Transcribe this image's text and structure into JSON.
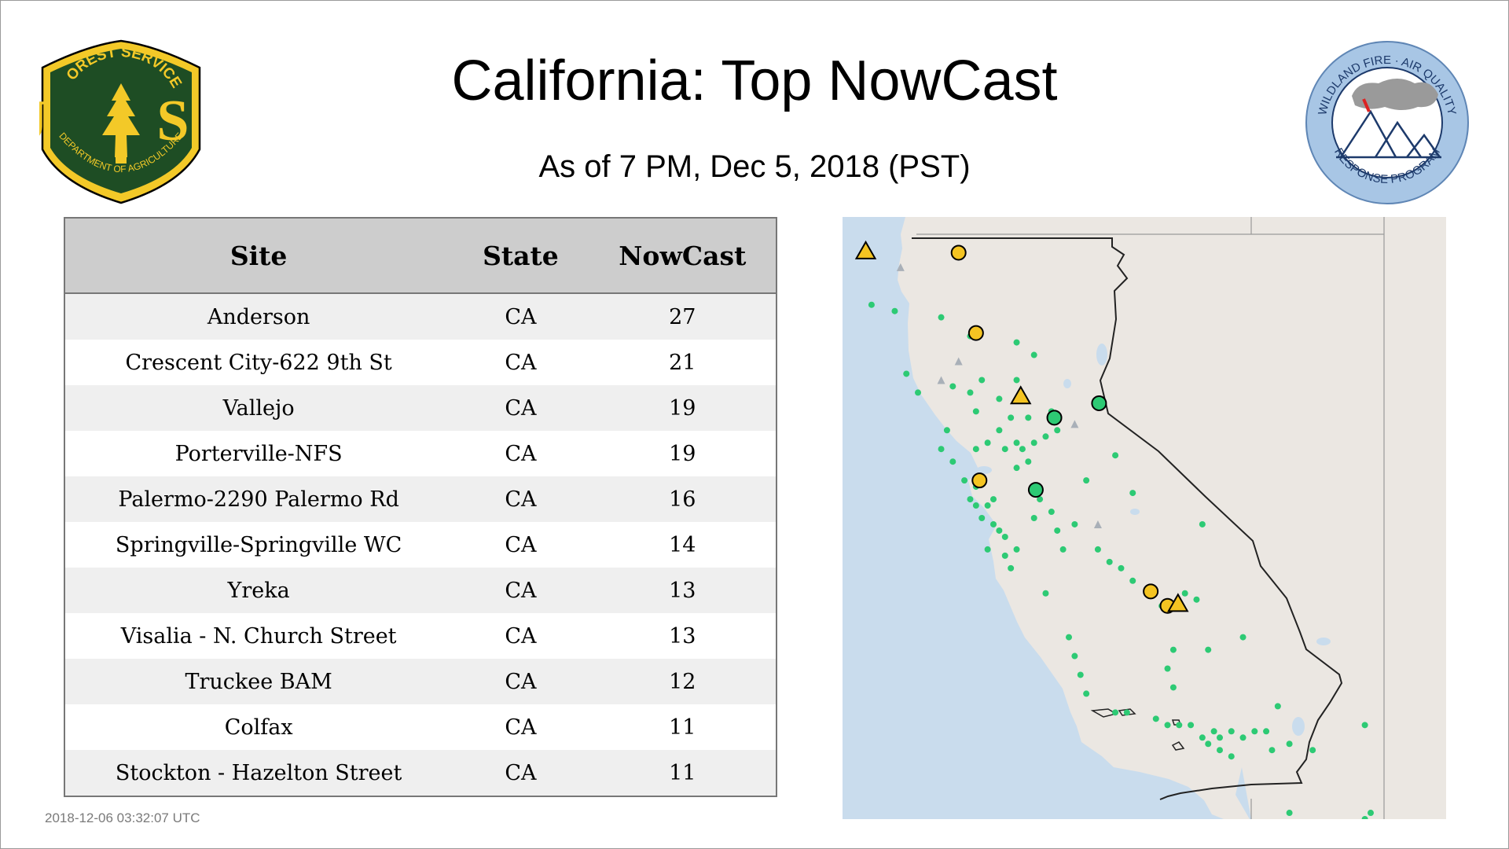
{
  "header": {
    "title": "California: Top NowCast",
    "subtitle": "As of  7 PM, Dec  5, 2018 (PST)"
  },
  "logos": {
    "usfs": {
      "icon": "forest-service-shield-logo",
      "top_text": "FOREST SERVICE",
      "letters": "U S",
      "bottom_text": "DEPARTMENT OF AGRICULTURE",
      "colors": {
        "shield": "#1e4d24",
        "gold": "#f3c928"
      }
    },
    "wfaq": {
      "icon": "wildland-fire-air-quality-logo",
      "top_text": "WILDLAND FIRE · AIR QUALITY",
      "bottom_text": "RESPONSE PROGRAM",
      "colors": {
        "ring": "#a8c6e5",
        "text": "#1d3a6b"
      }
    }
  },
  "table": {
    "columns": [
      "Site",
      "State",
      "NowCast"
    ],
    "rows": [
      {
        "site": "Anderson",
        "state": "CA",
        "nowcast": "27"
      },
      {
        "site": "Crescent City-622 9th St",
        "state": "CA",
        "nowcast": "21"
      },
      {
        "site": "Vallejo",
        "state": "CA",
        "nowcast": "19"
      },
      {
        "site": "Porterville-NFS",
        "state": "CA",
        "nowcast": "19"
      },
      {
        "site": "Palermo-2290 Palermo Rd",
        "state": "CA",
        "nowcast": "16"
      },
      {
        "site": "Springville-Springville WC",
        "state": "CA",
        "nowcast": "14"
      },
      {
        "site": "Yreka",
        "state": "CA",
        "nowcast": "13"
      },
      {
        "site": "Visalia - N. Church Street",
        "state": "CA",
        "nowcast": "13"
      },
      {
        "site": "Truckee BAM",
        "state": "CA",
        "nowcast": "12"
      },
      {
        "site": "Colfax",
        "state": "CA",
        "nowcast": "11"
      },
      {
        "site": "Stockton - Hazelton Street",
        "state": "CA",
        "nowcast": "11"
      }
    ]
  },
  "map": {
    "region": "California",
    "colors": {
      "ocean": "#c9dced",
      "land": "#ebe7e2",
      "border": "#222222",
      "good": "#2dca74",
      "moderate": "#f4c422",
      "marker_outline": "#000000",
      "gray_site": "#a9b0b8"
    },
    "small_markers_lonlat": [
      [
        -124.1,
        40.9
      ],
      [
        -123.7,
        40.8
      ],
      [
        -122.9,
        40.7
      ],
      [
        -122.4,
        40.4
      ],
      [
        -121.6,
        40.3
      ],
      [
        -121.3,
        40.1
      ],
      [
        -123.5,
        39.8
      ],
      [
        -123.3,
        39.5
      ],
      [
        -122.7,
        39.6
      ],
      [
        -122.4,
        39.5
      ],
      [
        -122.2,
        39.7
      ],
      [
        -121.6,
        39.7
      ],
      [
        -121.9,
        39.4
      ],
      [
        -122.3,
        39.2
      ],
      [
        -121.7,
        39.1
      ],
      [
        -121.4,
        39.1
      ],
      [
        -120.2,
        39.3
      ],
      [
        -122.8,
        38.9
      ],
      [
        -122.9,
        38.6
      ],
      [
        -122.7,
        38.4
      ],
      [
        -122.3,
        38.6
      ],
      [
        -122.1,
        38.7
      ],
      [
        -121.9,
        38.9
      ],
      [
        -121.8,
        38.6
      ],
      [
        -121.6,
        38.7
      ],
      [
        -121.5,
        38.6
      ],
      [
        -121.3,
        38.7
      ],
      [
        -121.1,
        38.8
      ],
      [
        -120.9,
        38.9
      ],
      [
        -121.4,
        38.4
      ],
      [
        -121.6,
        38.3
      ],
      [
        -122.5,
        38.1
      ],
      [
        -122.3,
        38.0
      ],
      [
        -122.4,
        37.8
      ],
      [
        -122.3,
        37.7
      ],
      [
        -122.1,
        37.7
      ],
      [
        -122.0,
        37.8
      ],
      [
        -122.2,
        37.5
      ],
      [
        -122.0,
        37.4
      ],
      [
        -121.9,
        37.3
      ],
      [
        -121.8,
        37.2
      ],
      [
        -122.1,
        37.0
      ],
      [
        -121.8,
        36.9
      ],
      [
        -121.7,
        36.7
      ],
      [
        -121.6,
        37.0
      ],
      [
        -121.3,
        37.5
      ],
      [
        -121.2,
        37.8
      ],
      [
        -121.0,
        37.6
      ],
      [
        -120.9,
        37.3
      ],
      [
        -120.6,
        37.4
      ],
      [
        -120.8,
        37.0
      ],
      [
        -120.2,
        37.0
      ],
      [
        -120.0,
        36.8
      ],
      [
        -119.8,
        36.7
      ],
      [
        -119.6,
        36.5
      ],
      [
        -119.3,
        36.3
      ],
      [
        -119.1,
        36.1
      ],
      [
        -118.7,
        36.3
      ],
      [
        -118.5,
        36.2
      ],
      [
        -121.1,
        36.3
      ],
      [
        -120.7,
        35.6
      ],
      [
        -120.6,
        35.3
      ],
      [
        -120.5,
        35.0
      ],
      [
        -120.4,
        34.7
      ],
      [
        -119.9,
        34.4
      ],
      [
        -119.7,
        34.4
      ],
      [
        -119.2,
        34.3
      ],
      [
        -119.0,
        34.2
      ],
      [
        -118.8,
        34.2
      ],
      [
        -118.6,
        34.2
      ],
      [
        -118.4,
        34.0
      ],
      [
        -118.2,
        34.1
      ],
      [
        -118.1,
        34.0
      ],
      [
        -117.9,
        34.1
      ],
      [
        -117.7,
        34.0
      ],
      [
        -117.5,
        34.1
      ],
      [
        -117.3,
        34.1
      ],
      [
        -117.2,
        33.8
      ],
      [
        -117.9,
        33.7
      ],
      [
        -118.1,
        33.8
      ],
      [
        -118.3,
        33.9
      ],
      [
        -117.1,
        34.5
      ],
      [
        -116.9,
        33.9
      ],
      [
        -116.5,
        33.8
      ],
      [
        -115.6,
        34.2
      ],
      [
        -116.9,
        32.8
      ],
      [
        -117.1,
        32.6
      ],
      [
        -115.5,
        32.8
      ],
      [
        -115.6,
        32.7
      ],
      [
        -118.3,
        35.4
      ],
      [
        -118.9,
        35.4
      ],
      [
        -119.0,
        35.1
      ],
      [
        -118.9,
        34.8
      ],
      [
        -117.7,
        35.6
      ],
      [
        -120.4,
        38.1
      ],
      [
        -121.0,
        39.2
      ],
      [
        -119.9,
        38.5
      ],
      [
        -119.6,
        37.9
      ],
      [
        -118.4,
        37.4
      ]
    ],
    "gray_triangles_lonlat": [
      [
        -123.6,
        41.5
      ],
      [
        -122.6,
        40.0
      ],
      [
        -122.9,
        39.7
      ],
      [
        -120.6,
        39.0
      ],
      [
        -120.2,
        37.4
      ],
      [
        -121.2,
        38.0
      ]
    ],
    "large_markers": [
      {
        "name": "Crescent City-622 9th St",
        "lon": -124.2,
        "lat": 41.75,
        "shape": "triangle",
        "category": "moderate"
      },
      {
        "name": "Yreka",
        "lon": -122.6,
        "lat": 41.73,
        "shape": "circle",
        "category": "moderate"
      },
      {
        "name": "Anderson",
        "lon": -122.3,
        "lat": 40.45,
        "shape": "circle",
        "category": "moderate"
      },
      {
        "name": "Palermo-2290 Palermo Rd",
        "lon": -121.53,
        "lat": 39.44,
        "shape": "triangle",
        "category": "moderate"
      },
      {
        "name": "Truckee BAM",
        "lon": -120.18,
        "lat": 39.33,
        "shape": "circle",
        "category": "good"
      },
      {
        "name": "Colfax",
        "lon": -120.95,
        "lat": 39.1,
        "shape": "circle",
        "category": "good"
      },
      {
        "name": "Vallejo",
        "lon": -122.24,
        "lat": 38.1,
        "shape": "circle",
        "category": "moderate"
      },
      {
        "name": "Stockton - Hazelton Street",
        "lon": -121.27,
        "lat": 37.95,
        "shape": "circle",
        "category": "good"
      },
      {
        "name": "Visalia - N. Church Street",
        "lon": -119.29,
        "lat": 36.33,
        "shape": "circle",
        "category": "moderate"
      },
      {
        "name": "Porterville-NFS",
        "lon": -119.0,
        "lat": 36.1,
        "shape": "circle",
        "category": "moderate"
      },
      {
        "name": "Springville-Springville WC",
        "lon": -118.82,
        "lat": 36.13,
        "shape": "triangle",
        "category": "moderate"
      }
    ]
  },
  "footer": {
    "timestamp": "2018-12-06 03:32:07 UTC"
  }
}
